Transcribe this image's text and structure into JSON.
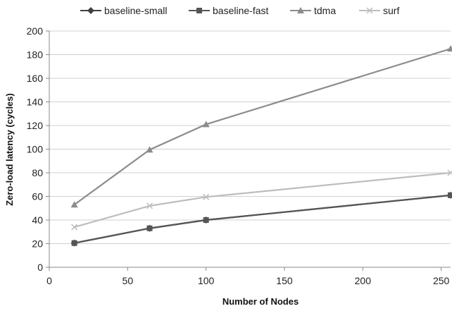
{
  "chart_data": {
    "type": "line",
    "title": "",
    "xlabel": "Number of Nodes",
    "ylabel": "Zero-load latency (cycles)",
    "xlim": [
      0,
      256
    ],
    "ylim": [
      0,
      200
    ],
    "x_ticks": [
      0,
      50,
      100,
      150,
      200,
      250
    ],
    "y_ticks": [
      0,
      20,
      40,
      60,
      80,
      100,
      120,
      140,
      160,
      180,
      200
    ],
    "grid": "horizontal",
    "legend_position": "top",
    "series": [
      {
        "name": "baseline-small",
        "color": "#404040",
        "marker": "diamond",
        "x": [
          16,
          64,
          100,
          256
        ],
        "values": [
          20.5,
          33,
          40,
          61
        ]
      },
      {
        "name": "baseline-fast",
        "color": "#555555",
        "marker": "square",
        "x": [
          16,
          64,
          100,
          256
        ],
        "values": [
          20.5,
          33,
          40,
          61
        ]
      },
      {
        "name": "tdma",
        "color": "#8c8c8c",
        "marker": "triangle",
        "x": [
          16,
          64,
          100,
          256
        ],
        "values": [
          53,
          99.5,
          121,
          185
        ]
      },
      {
        "name": "surf",
        "color": "#bdbdbd",
        "marker": "x",
        "x": [
          16,
          64,
          100,
          256
        ],
        "values": [
          34,
          52,
          59.5,
          80
        ]
      }
    ]
  }
}
